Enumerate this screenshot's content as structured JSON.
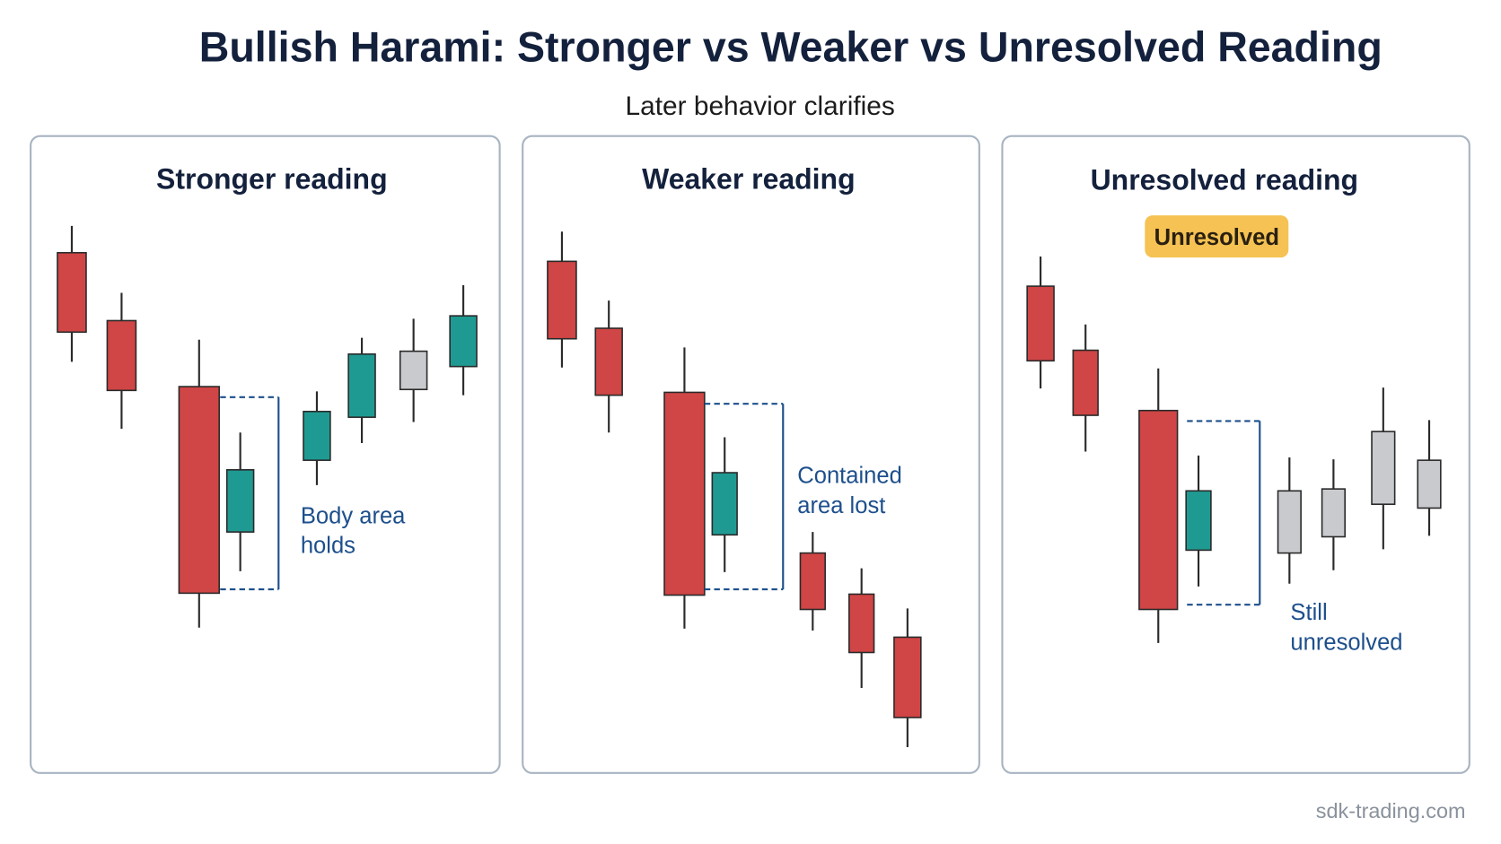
{
  "header": {
    "title": "Bullish Harami: Stronger vs Weaker vs Unresolved Reading",
    "subtitle": "Later behavior clarifies"
  },
  "panels": [
    {
      "title": "Stronger reading",
      "annotation": [
        "Body area",
        "holds"
      ]
    },
    {
      "title": "Weaker reading",
      "annotation": [
        "Contained",
        "area lost"
      ]
    },
    {
      "title": "Unresolved reading",
      "badge": "Unresolved",
      "annotation": [
        "Still",
        "unresolved"
      ]
    }
  ],
  "footer": {
    "watermark": "sdk-trading.com"
  }
}
